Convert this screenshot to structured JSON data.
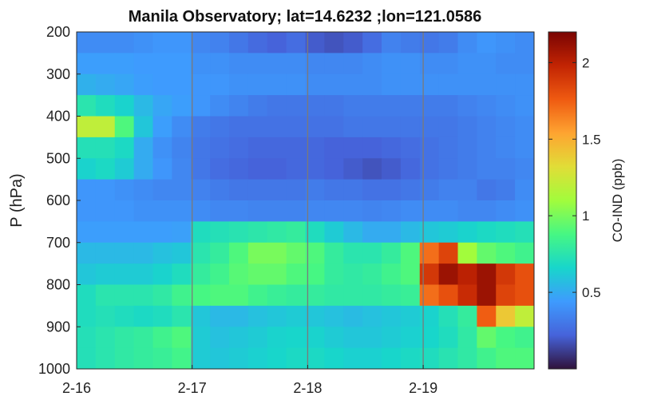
{
  "chart_data": {
    "type": "heatmap",
    "title": "Manila Observatory; lat=14.6232 ;lon=121.0586",
    "xlabel": "",
    "ylabel": "P (hPa)",
    "colorbar_label": "CO-IND (ppb)",
    "colormap": "turbo",
    "clim": [
      0,
      2.2
    ],
    "colorbar_ticks": [
      "0.5",
      "1",
      "1.5",
      "2"
    ],
    "colorbar_tick_values": [
      0.5,
      1,
      1.5,
      2
    ],
    "x_ticks": [
      "2-16",
      "2-17",
      "2-18",
      "2-19"
    ],
    "x_tick_values": [
      0,
      1,
      2,
      3
    ],
    "xlim": [
      0,
      3.96
    ],
    "y_ticks": [
      "200",
      "300",
      "400",
      "500",
      "600",
      "700",
      "800",
      "900",
      "1000"
    ],
    "y_tick_values": [
      200,
      300,
      400,
      500,
      600,
      700,
      800,
      900,
      1000
    ],
    "ylim": [
      200,
      1000
    ],
    "y_reversed": true,
    "vertical_gridlines_at": [
      1,
      2,
      3
    ],
    "levels_hPa": [
      225,
      275,
      325,
      375,
      425,
      475,
      525,
      575,
      625,
      675,
      725,
      775,
      825,
      875,
      925,
      975
    ],
    "time_columns": 24,
    "time_step_days": 0.165,
    "values": [
      [
        0.38,
        0.38,
        0.38,
        0.4,
        0.42,
        0.42,
        0.36,
        0.34,
        0.3,
        0.25,
        0.22,
        0.26,
        0.2,
        0.18,
        0.2,
        0.26,
        0.34,
        0.32,
        0.3,
        0.32,
        0.38,
        0.42,
        0.4,
        0.38
      ],
      [
        0.45,
        0.45,
        0.45,
        0.44,
        0.44,
        0.44,
        0.4,
        0.4,
        0.38,
        0.38,
        0.38,
        0.38,
        0.36,
        0.36,
        0.36,
        0.38,
        0.4,
        0.4,
        0.38,
        0.38,
        0.4,
        0.4,
        0.38,
        0.38
      ],
      [
        0.52,
        0.5,
        0.48,
        0.45,
        0.44,
        0.44,
        0.42,
        0.42,
        0.4,
        0.4,
        0.4,
        0.4,
        0.38,
        0.38,
        0.38,
        0.38,
        0.4,
        0.4,
        0.4,
        0.4,
        0.4,
        0.4,
        0.4,
        0.4
      ],
      [
        0.75,
        0.7,
        0.65,
        0.55,
        0.48,
        0.45,
        0.42,
        0.38,
        0.35,
        0.32,
        0.3,
        0.3,
        0.3,
        0.3,
        0.32,
        0.32,
        0.32,
        0.32,
        0.32,
        0.32,
        0.34,
        0.36,
        0.38,
        0.4
      ],
      [
        1.2,
        1.2,
        0.9,
        0.6,
        0.45,
        0.38,
        0.32,
        0.3,
        0.28,
        0.28,
        0.28,
        0.28,
        0.28,
        0.28,
        0.3,
        0.3,
        0.3,
        0.3,
        0.3,
        0.3,
        0.32,
        0.34,
        0.36,
        0.38
      ],
      [
        0.72,
        0.72,
        0.68,
        0.5,
        0.4,
        0.35,
        0.3,
        0.28,
        0.26,
        0.24,
        0.24,
        0.24,
        0.24,
        0.22,
        0.22,
        0.22,
        0.24,
        0.26,
        0.28,
        0.3,
        0.32,
        0.34,
        0.36,
        0.38
      ],
      [
        0.65,
        0.68,
        0.62,
        0.5,
        0.42,
        0.36,
        0.3,
        0.26,
        0.24,
        0.22,
        0.22,
        0.24,
        0.24,
        0.22,
        0.2,
        0.18,
        0.2,
        0.24,
        0.28,
        0.3,
        0.32,
        0.34,
        0.34,
        0.36
      ],
      [
        0.42,
        0.42,
        0.4,
        0.38,
        0.36,
        0.36,
        0.34,
        0.32,
        0.3,
        0.3,
        0.3,
        0.3,
        0.32,
        0.3,
        0.3,
        0.28,
        0.28,
        0.3,
        0.32,
        0.34,
        0.34,
        0.3,
        0.32,
        0.38
      ],
      [
        0.42,
        0.42,
        0.42,
        0.4,
        0.4,
        0.4,
        0.38,
        0.36,
        0.36,
        0.35,
        0.35,
        0.35,
        0.36,
        0.36,
        0.36,
        0.35,
        0.36,
        0.38,
        0.38,
        0.38,
        0.36,
        0.36,
        0.38,
        0.4
      ],
      [
        0.45,
        0.45,
        0.45,
        0.45,
        0.45,
        0.46,
        0.7,
        0.72,
        0.74,
        0.76,
        0.78,
        0.8,
        0.7,
        0.62,
        0.55,
        0.5,
        0.5,
        0.55,
        0.6,
        0.62,
        0.65,
        0.68,
        0.7,
        0.72
      ],
      [
        0.55,
        0.55,
        0.55,
        0.55,
        0.58,
        0.6,
        0.75,
        0.8,
        0.9,
        1.0,
        1.0,
        0.95,
        0.9,
        0.8,
        0.75,
        0.75,
        0.8,
        0.9,
        1.7,
        1.85,
        1.1,
        0.95,
        0.9,
        0.85
      ],
      [
        0.6,
        0.62,
        0.62,
        0.62,
        0.65,
        0.7,
        0.8,
        0.85,
        0.92,
        0.95,
        0.95,
        0.9,
        0.88,
        0.8,
        0.78,
        0.8,
        0.85,
        0.9,
        1.9,
        2.1,
        2.0,
        2.1,
        1.9,
        1.8
      ],
      [
        0.7,
        0.75,
        0.75,
        0.75,
        0.78,
        0.85,
        0.88,
        0.9,
        0.9,
        0.85,
        0.82,
        0.8,
        0.8,
        0.78,
        0.78,
        0.78,
        0.8,
        0.82,
        1.7,
        1.8,
        1.95,
        2.1,
        1.85,
        1.8
      ],
      [
        0.7,
        0.72,
        0.7,
        0.68,
        0.7,
        0.75,
        0.6,
        0.55,
        0.55,
        0.58,
        0.6,
        0.62,
        0.6,
        0.58,
        0.56,
        0.58,
        0.6,
        0.62,
        0.65,
        0.72,
        0.8,
        1.75,
        1.4,
        1.2
      ],
      [
        0.72,
        0.75,
        0.78,
        0.8,
        0.85,
        0.9,
        0.62,
        0.58,
        0.6,
        0.62,
        0.65,
        0.66,
        0.65,
        0.62,
        0.6,
        0.6,
        0.62,
        0.64,
        0.66,
        0.7,
        0.78,
        0.95,
        0.88,
        0.85
      ],
      [
        0.72,
        0.75,
        0.78,
        0.8,
        0.82,
        0.86,
        0.62,
        0.6,
        0.62,
        0.64,
        0.66,
        0.68,
        0.68,
        0.66,
        0.64,
        0.64,
        0.66,
        0.68,
        0.7,
        0.74,
        0.78,
        0.85,
        0.9,
        0.9
      ]
    ]
  }
}
